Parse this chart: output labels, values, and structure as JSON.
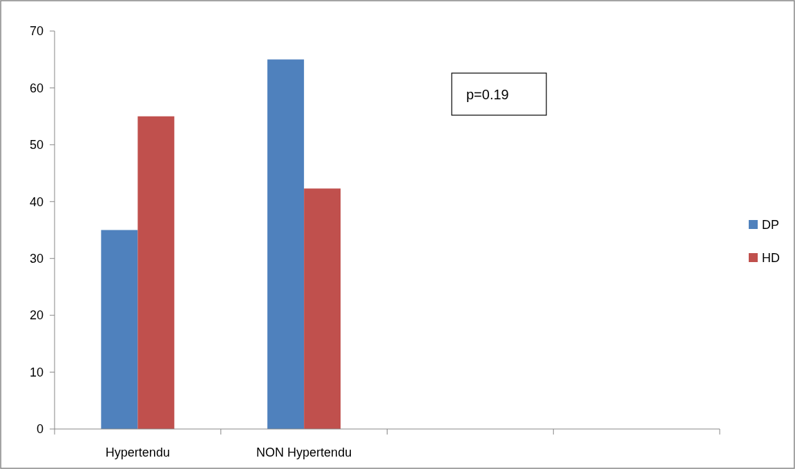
{
  "chart_data": {
    "type": "bar",
    "categories": [
      "Hypertendu",
      "NON Hypertendu",
      null,
      null
    ],
    "series": [
      {
        "name": "DP",
        "color": "#4f81bd",
        "values": [
          35,
          65,
          null,
          null
        ]
      },
      {
        "name": "HD",
        "color": "#c0504d",
        "values": [
          55,
          42.3,
          null,
          null
        ]
      }
    ],
    "ylim": [
      0,
      70
    ],
    "yticks": [
      0,
      10,
      20,
      30,
      40,
      50,
      60,
      70
    ],
    "grid": false,
    "legend": "right",
    "annotations": [
      "p=0.19"
    ]
  }
}
